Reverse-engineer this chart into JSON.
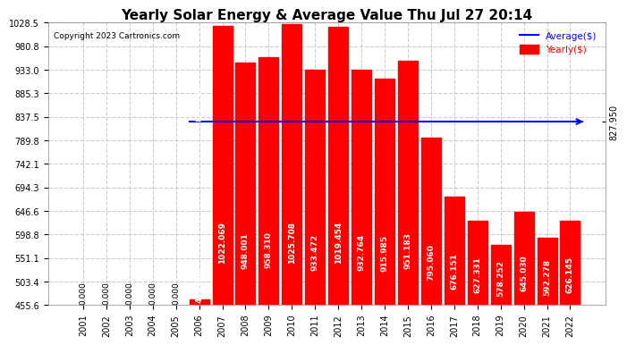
{
  "title": "Yearly Solar Energy & Average Value Thu Jul 27 20:14",
  "copyright": "Copyright 2023 Cartronics.com",
  "years": [
    2001,
    2002,
    2003,
    2004,
    2005,
    2006,
    2007,
    2008,
    2009,
    2010,
    2011,
    2012,
    2013,
    2014,
    2015,
    2016,
    2017,
    2018,
    2019,
    2020,
    2021,
    2022
  ],
  "values": [
    0.0,
    0.0,
    0.0,
    0.0,
    0.0,
    466.802,
    1022.069,
    948.001,
    958.31,
    1025.708,
    933.472,
    1019.454,
    932.764,
    915.985,
    951.183,
    795.06,
    676.151,
    627.331,
    578.252,
    645.03,
    592.278,
    626.145
  ],
  "average": 827.95,
  "bar_color": "#ff0000",
  "zero_bar_height": 10,
  "avg_line_color": "#0000ff",
  "avg_label_color": "#0000ff",
  "yearly_label_color": "#ff0000",
  "legend_avg": "Average($)",
  "legend_yearly": "Yearly($)",
  "ylim_min": 455.6,
  "ylim_max": 1028.5,
  "yticks": [
    455.6,
    503.4,
    551.1,
    598.8,
    646.6,
    694.3,
    742.1,
    789.8,
    837.5,
    885.3,
    933.0,
    980.8,
    1028.5
  ],
  "background_color": "#ffffff",
  "grid_color": "#cccccc",
  "title_fontsize": 11,
  "bar_label_fontsize": 6.5,
  "tick_fontsize": 7,
  "copyright_fontsize": 6.5
}
